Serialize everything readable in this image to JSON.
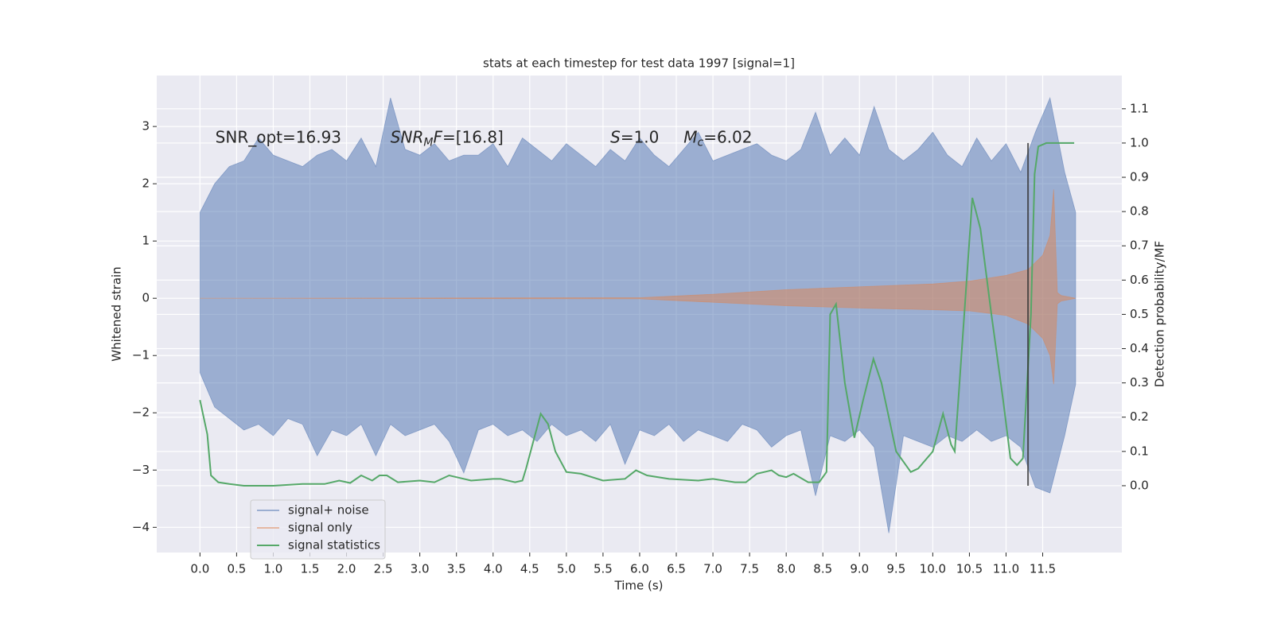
{
  "chart_data": {
    "type": "line",
    "title": "stats at each timestep for test data 1997 [signal=1]",
    "xlabel": "Time (s)",
    "ylabel": "Whitened strain",
    "y2label": "Detection probability/MF",
    "xlim": [
      -0.59,
      12.58
    ],
    "ylim": [
      -4.44,
      3.89
    ],
    "y2lim": [
      -0.195,
      1.197
    ],
    "xticks": [
      {
        "value": 0,
        "label": "0.0"
      },
      0.5,
      {
        "value": 1,
        "label": "1.0"
      },
      1.5,
      {
        "value": 2,
        "label": "2.0"
      },
      2.5,
      {
        "value": 3,
        "label": "3.0"
      },
      3.5,
      {
        "value": 4,
        "label": "4.0"
      },
      4.5,
      {
        "value": 5,
        "label": "5.0"
      },
      5.5,
      {
        "value": 6,
        "label": "6.0"
      },
      6.5,
      {
        "value": 7,
        "label": "7.0"
      },
      7.5,
      {
        "value": 8,
        "label": "8.0"
      },
      8.5,
      {
        "value": 9,
        "label": "9.0"
      },
      9.5,
      {
        "value": 10,
        "label": "10.0"
      },
      10.5,
      {
        "value": 11,
        "label": "11.0"
      },
      11.5
    ],
    "yticks": [
      {
        "value": -4,
        "label": "−4"
      },
      {
        "value": -3,
        "label": "−3"
      },
      {
        "value": -2,
        "label": "−2"
      },
      {
        "value": -1,
        "label": "−1"
      },
      0,
      1,
      2,
      3
    ],
    "y2ticks": [
      {
        "value": 0,
        "label": "0.0"
      },
      0.1,
      0.2,
      0.3,
      0.4,
      0.5,
      0.6,
      0.7,
      0.8,
      0.9,
      {
        "value": 1,
        "label": "1.0"
      },
      1.1
    ],
    "grid": true,
    "legend": {
      "loc": "lower left"
    },
    "series": [
      {
        "name": "signal+ noise",
        "color": "#4c72b0",
        "style": "band",
        "x": [
          0,
          0.2,
          0.4,
          0.6,
          0.8,
          1,
          1.2,
          1.4,
          1.6,
          1.8,
          2,
          2.2,
          2.4,
          2.6,
          2.8,
          3,
          3.2,
          3.4,
          3.6,
          3.8,
          4,
          4.2,
          4.4,
          4.6,
          4.8,
          5,
          5.2,
          5.4,
          5.6,
          5.8,
          6,
          6.2,
          6.4,
          6.6,
          6.8,
          7,
          7.2,
          7.4,
          7.6,
          7.8,
          8,
          8.2,
          8.4,
          8.6,
          8.8,
          9,
          9.2,
          9.4,
          9.6,
          9.8,
          10,
          10.2,
          10.4,
          10.6,
          10.8,
          11,
          11.2,
          11.4,
          11.6,
          11.8,
          11.95
        ],
        "upper": [
          1.5,
          2.0,
          2.3,
          2.4,
          2.8,
          2.5,
          2.4,
          2.3,
          2.5,
          2.6,
          2.4,
          2.8,
          2.3,
          3.5,
          2.6,
          2.5,
          2.7,
          2.4,
          2.5,
          2.5,
          2.7,
          2.3,
          2.8,
          2.6,
          2.4,
          2.7,
          2.5,
          2.3,
          2.6,
          2.4,
          2.8,
          2.5,
          2.3,
          2.6,
          2.9,
          2.4,
          2.5,
          2.6,
          2.7,
          2.5,
          2.4,
          2.6,
          3.25,
          2.5,
          2.8,
          2.5,
          3.35,
          2.6,
          2.4,
          2.6,
          2.9,
          2.5,
          2.3,
          2.8,
          2.4,
          2.7,
          2.2,
          2.9,
          3.5,
          2.2,
          1.5
        ],
        "lower": [
          -1.3,
          -1.9,
          -2.1,
          -2.3,
          -2.2,
          -2.4,
          -2.1,
          -2.2,
          -2.75,
          -2.3,
          -2.4,
          -2.2,
          -2.75,
          -2.2,
          -2.4,
          -2.3,
          -2.2,
          -2.5,
          -3.05,
          -2.3,
          -2.2,
          -2.4,
          -2.3,
          -2.5,
          -2.2,
          -2.4,
          -2.3,
          -2.5,
          -2.2,
          -2.9,
          -2.3,
          -2.4,
          -2.2,
          -2.5,
          -2.3,
          -2.4,
          -2.5,
          -2.2,
          -2.3,
          -2.6,
          -2.4,
          -2.3,
          -3.45,
          -2.4,
          -2.5,
          -2.3,
          -2.6,
          -4.1,
          -2.4,
          -2.5,
          -2.6,
          -2.4,
          -2.5,
          -2.3,
          -2.5,
          -2.4,
          -2.6,
          -3.3,
          -3.4,
          -2.4,
          -1.5
        ]
      },
      {
        "name": "signal only",
        "color": "#dd8452",
        "style": "band",
        "x": [
          0,
          6,
          7,
          8,
          9,
          10,
          10.5,
          11,
          11.3,
          11.5,
          11.6,
          11.65,
          11.7,
          11.75,
          11.95
        ],
        "upper": [
          0,
          0.01,
          0.07,
          0.15,
          0.2,
          0.25,
          0.3,
          0.4,
          0.5,
          0.75,
          1.1,
          1.9,
          0.1,
          0.05,
          0
        ],
        "lower": [
          0,
          -0.01,
          -0.07,
          -0.13,
          -0.17,
          -0.2,
          -0.22,
          -0.3,
          -0.45,
          -0.7,
          -1.0,
          -1.5,
          -0.1,
          -0.05,
          0
        ]
      },
      {
        "name": "signal statistics",
        "color": "#55a868",
        "style": "line",
        "axis": "y2",
        "x": [
          0,
          0.1,
          0.15,
          0.25,
          0.4,
          0.6,
          1.0,
          1.4,
          1.7,
          1.9,
          2.05,
          2.2,
          2.35,
          2.45,
          2.55,
          2.7,
          3.0,
          3.2,
          3.4,
          3.5,
          3.7,
          4.0,
          4.1,
          4.3,
          4.4,
          4.45,
          4.55,
          4.65,
          4.75,
          4.85,
          5.0,
          5.2,
          5.5,
          5.8,
          5.95,
          6.1,
          6.4,
          6.8,
          7.0,
          7.3,
          7.45,
          7.6,
          7.8,
          7.9,
          8.0,
          8.1,
          8.3,
          8.45,
          8.55,
          8.6,
          8.68,
          8.8,
          8.93,
          9.05,
          9.19,
          9.3,
          9.5,
          9.7,
          9.8,
          10.0,
          10.14,
          10.25,
          10.3,
          10.43,
          10.54,
          10.65,
          10.8,
          10.96,
          11.06,
          11.15,
          11.23,
          11.34,
          11.39,
          11.44,
          11.55,
          11.93
        ],
        "values": [
          0.25,
          0.15,
          0.03,
          0.01,
          0.005,
          0.0,
          0.0,
          0.005,
          0.005,
          0.015,
          0.008,
          0.03,
          0.015,
          0.03,
          0.03,
          0.01,
          0.015,
          0.01,
          0.03,
          0.025,
          0.015,
          0.02,
          0.02,
          0.01,
          0.015,
          0.05,
          0.13,
          0.21,
          0.18,
          0.1,
          0.04,
          0.035,
          0.015,
          0.02,
          0.045,
          0.03,
          0.02,
          0.015,
          0.02,
          0.01,
          0.01,
          0.035,
          0.045,
          0.03,
          0.025,
          0.035,
          0.01,
          0.01,
          0.04,
          0.5,
          0.53,
          0.3,
          0.14,
          0.25,
          0.37,
          0.3,
          0.1,
          0.04,
          0.05,
          0.1,
          0.21,
          0.12,
          0.1,
          0.5,
          0.84,
          0.75,
          0.5,
          0.25,
          0.08,
          0.06,
          0.08,
          0.5,
          0.91,
          0.99,
          1.0,
          1.0
        ]
      }
    ],
    "vlines": [
      {
        "x": 11.3,
        "ymin": 0,
        "ymax": 1.0,
        "axis": "y2",
        "color": "#333333"
      }
    ],
    "annotations": [
      {
        "x": 0.21,
        "y": 2.8,
        "parts": [
          {
            "text": "SNR_opt=16.93"
          }
        ]
      },
      {
        "x": 2.6,
        "y": 2.8,
        "parts": [
          {
            "text": "SNR",
            "italic": true
          },
          {
            "text": "M",
            "italic": true,
            "sub": true
          },
          {
            "text": "F",
            "italic": true
          },
          {
            "text": "=[16.8]"
          }
        ]
      },
      {
        "x": 5.6,
        "y": 2.8,
        "parts": [
          {
            "text": "S",
            "italic": true
          },
          {
            "text": "=1.0"
          }
        ]
      },
      {
        "x": 6.6,
        "y": 2.8,
        "parts": [
          {
            "text": "M",
            "italic": true
          },
          {
            "text": "c",
            "italic": true,
            "sub": true
          },
          {
            "text": "=6.02"
          }
        ]
      }
    ]
  }
}
